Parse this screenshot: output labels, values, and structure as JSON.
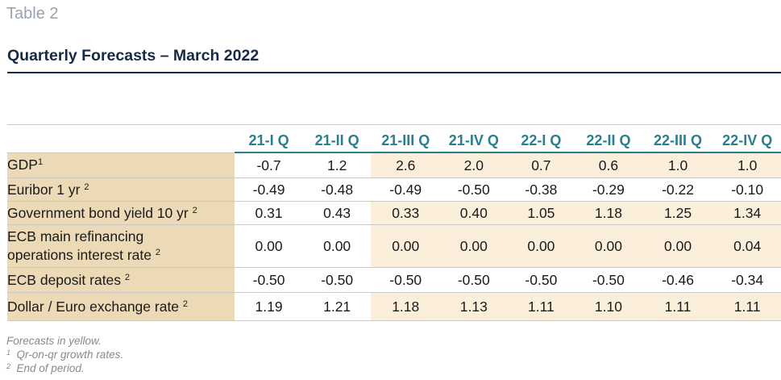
{
  "caption": "Table 2",
  "title": "Quarterly Forecasts – March 2022",
  "columns": [
    "21-I Q",
    "21-II Q",
    "21-III Q",
    "21-IV Q",
    "22-I Q",
    "22-II Q",
    "22-III Q",
    "22-IV Q"
  ],
  "rows": [
    {
      "label": "GDP",
      "sup": "1",
      "values": [
        "-0.7",
        "1.2",
        "2.6",
        "2.0",
        "0.7",
        "0.6",
        "1.0",
        "1.0"
      ]
    },
    {
      "label": "Euribor 1 yr",
      "sup": "2",
      "values": [
        "-0.49",
        "-0.48",
        "-0.49",
        "-0.50",
        "-0.38",
        "-0.29",
        "-0.22",
        "-0.10"
      ]
    },
    {
      "label": "Government bond yield 10 yr",
      "sup": "2",
      "values": [
        "0.31",
        "0.43",
        "0.33",
        "0.40",
        "1.05",
        "1.18",
        "1.25",
        "1.34"
      ]
    },
    {
      "label_line1": "ECB main refinancing",
      "label_line2": "operations interest rate",
      "sup": "2",
      "values": [
        "0.00",
        "0.00",
        "0.00",
        "0.00",
        "0.00",
        "0.00",
        "0.00",
        "0.04"
      ]
    },
    {
      "label": "ECB deposit rates",
      "sup": "2",
      "values": [
        "-0.50",
        "-0.50",
        "-0.50",
        "-0.50",
        "-0.50",
        "-0.50",
        "-0.46",
        "-0.34"
      ]
    },
    {
      "label": "Dollar / Euro exchange rate",
      "sup": "2",
      "values": [
        "1.19",
        "1.21",
        "1.18",
        "1.13",
        "1.11",
        "1.10",
        "1.11",
        "1.11"
      ]
    }
  ],
  "notes": {
    "forecasts": "Forecasts in yellow.",
    "note1_mark": "1",
    "note1": "Qr-on-qr growth rates.",
    "note2_mark": "2",
    "note2": "End of period."
  },
  "colors": {
    "title": "#172a45",
    "header_text": "#2a7f8f",
    "label_bg": "#ecd9b6",
    "forecast_bg": "#fbefdc"
  }
}
